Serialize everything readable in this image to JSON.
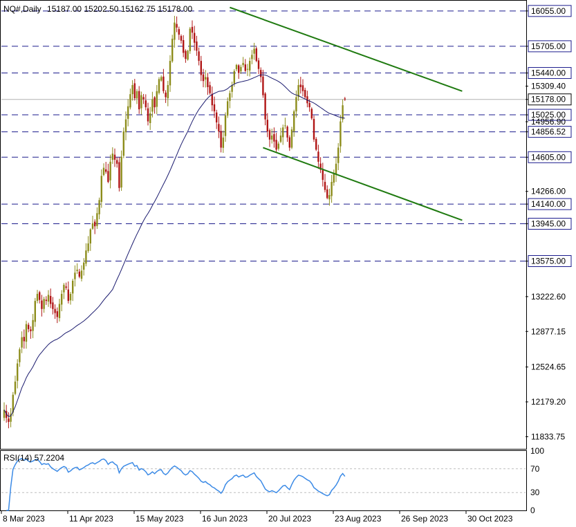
{
  "header": {
    "symbol": "NQ#,Daily",
    "ohlc": "15187.00 15202.50 15162.75 15178.00"
  },
  "colors": {
    "bull": "#8c8c1a",
    "bear": "#b01515",
    "level_line": "#1a1a8c",
    "channel": "#1f7a10",
    "ma": "#1a1a6e",
    "rsi": "#3b8ae6",
    "rsi_ref": "#bdbdbd",
    "grid_text": "#000000"
  },
  "price_axis": {
    "min": 11720,
    "max": 16150,
    "ticks": [
      {
        "value": 16055.0,
        "label": "16055.00",
        "boxed": true
      },
      {
        "value": 15705.0,
        "label": "15705.00",
        "boxed": true
      },
      {
        "value": 15440.0,
        "label": "15440.00",
        "boxed": true
      },
      {
        "value": 15309.4,
        "label": "15309.40",
        "boxed": false
      },
      {
        "value": 15178.0,
        "label": "15178.00",
        "boxed": true,
        "current": true
      },
      {
        "value": 15025.0,
        "label": "15025.00",
        "boxed": true
      },
      {
        "value": 14956.9,
        "label": "14956.90",
        "boxed": false
      },
      {
        "value": 14856.52,
        "label": "14856.52",
        "boxed": true
      },
      {
        "value": 14605.0,
        "label": "14605.00",
        "boxed": true
      },
      {
        "value": 14266.0,
        "label": "14266.00",
        "boxed": false
      },
      {
        "value": 14140.0,
        "label": "14140.00",
        "boxed": true
      },
      {
        "value": 13945.0,
        "label": "13945.00",
        "boxed": true
      },
      {
        "value": 13575.0,
        "label": "13575.00",
        "boxed": true
      },
      {
        "value": 13222.6,
        "label": "13222.60",
        "boxed": false
      },
      {
        "value": 12877.15,
        "label": "12877.15",
        "boxed": false
      },
      {
        "value": 12524.65,
        "label": "12524.65",
        "boxed": false
      },
      {
        "value": 12179.2,
        "label": "12179.20",
        "boxed": false
      },
      {
        "value": 11833.75,
        "label": "11833.75",
        "boxed": false
      }
    ]
  },
  "chart_data": {
    "type": "candlestick",
    "title": "NQ#,Daily",
    "ohlc_last": {
      "open": 15187.0,
      "high": 15202.5,
      "low": 15162.75,
      "close": 15178.0
    },
    "x_labels": [
      "8 Mar 2023",
      "11 Apr 2023",
      "15 May 2023",
      "16 Jun 2023",
      "20 Jul 2023",
      "23 Aug 2023",
      "26 Sep 2023",
      "30 Oct 2023"
    ],
    "horizontal_levels": [
      16055.0,
      15705.0,
      15440.0,
      15025.0,
      14856.52,
      14605.0,
      14140.0,
      13945.0,
      13575.0
    ],
    "current_price": 15178.0,
    "channel_lines": [
      {
        "name": "upper",
        "from": {
          "bar": 102,
          "price": 16090
        },
        "to": {
          "bar": 207,
          "price": 15260
        }
      },
      {
        "name": "lower",
        "from": {
          "bar": 117,
          "price": 14700
        },
        "to": {
          "bar": 207,
          "price": 13980
        }
      }
    ],
    "closes": [
      12100,
      12020,
      11980,
      12060,
      12250,
      12380,
      12560,
      12700,
      12820,
      12780,
      12950,
      12900,
      12880,
      12990,
      13180,
      13250,
      13190,
      13100,
      13200,
      13180,
      13240,
      13150,
      13100,
      13060,
      13020,
      13150,
      13250,
      13340,
      13310,
      13180,
      13250,
      13380,
      13460,
      13490,
      13420,
      13480,
      13560,
      13680,
      13750,
      13890,
      13950,
      13920,
      14050,
      14180,
      14420,
      14500,
      14460,
      14360,
      14560,
      14640,
      14580,
      14540,
      14300,
      14610,
      14860,
      14980,
      15110,
      15230,
      15320,
      15190,
      15260,
      15080,
      15220,
      15180,
      15100,
      14960,
      15040,
      15180,
      15100,
      15260,
      15380,
      15400,
      15260,
      15200,
      15320,
      15560,
      15780,
      15940,
      15890,
      15820,
      15760,
      15640,
      15580,
      15660,
      15880,
      15840,
      15740,
      15660,
      15560,
      15420,
      15360,
      15400,
      15300,
      15240,
      15120,
      15060,
      14950,
      14860,
      14700,
      14800,
      15020,
      15160,
      15240,
      15320,
      15460,
      15520,
      15440,
      15500,
      15540,
      15460,
      15480,
      15560,
      15620,
      15680,
      15560,
      15480,
      15400,
      15220,
      14980,
      14860,
      14780,
      14820,
      14760,
      14680,
      14740,
      14820,
      14900,
      14920,
      14800,
      14700,
      14880,
      15060,
      15200,
      15320,
      15300,
      15260,
      15200,
      15140,
      15100,
      14990,
      14780,
      14680,
      14560,
      14480,
      14380,
      14280,
      14200,
      14230,
      14360,
      14440,
      14540,
      14700,
      14960,
      15120,
      15178
    ],
    "sma_label": "",
    "rsi": {
      "label": "RSI(14) 57.2204",
      "period": 14,
      "last": 57.2204,
      "scale_labels": [
        "100",
        "70",
        "30",
        "0"
      ],
      "reference_levels": [
        70,
        30
      ]
    }
  }
}
